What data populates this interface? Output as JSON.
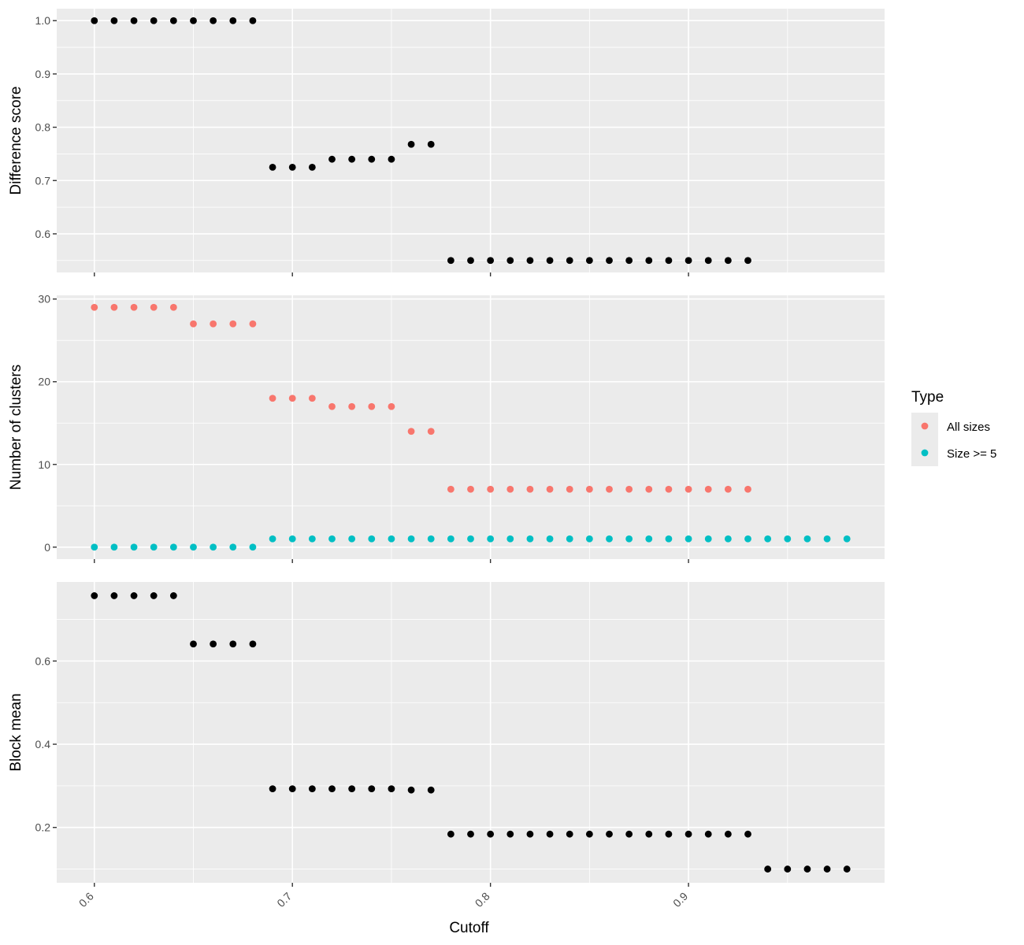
{
  "chart_data": [
    {
      "type": "scatter",
      "ylabel": "Difference score",
      "xlabel": "",
      "xlim": [
        0.581,
        0.999
      ],
      "ylim": [
        0.5275,
        1.0225
      ],
      "y_ticks": [
        0.6,
        0.7,
        0.8,
        0.9,
        1.0
      ],
      "y_tick_labels": [
        "0.6",
        "0.7",
        "0.8",
        "0.9",
        "1.0"
      ],
      "show_x_tick_labels": false,
      "series": [
        {
          "color": "#000000",
          "points": [
            {
              "x": 0.6,
              "y": 1.0
            },
            {
              "x": 0.61,
              "y": 1.0
            },
            {
              "x": 0.62,
              "y": 1.0
            },
            {
              "x": 0.63,
              "y": 1.0
            },
            {
              "x": 0.64,
              "y": 1.0
            },
            {
              "x": 0.65,
              "y": 1.0
            },
            {
              "x": 0.66,
              "y": 1.0
            },
            {
              "x": 0.67,
              "y": 1.0
            },
            {
              "x": 0.68,
              "y": 1.0
            },
            {
              "x": 0.69,
              "y": 0.725
            },
            {
              "x": 0.7,
              "y": 0.725
            },
            {
              "x": 0.71,
              "y": 0.725
            },
            {
              "x": 0.72,
              "y": 0.74
            },
            {
              "x": 0.73,
              "y": 0.74
            },
            {
              "x": 0.74,
              "y": 0.74
            },
            {
              "x": 0.75,
              "y": 0.74
            },
            {
              "x": 0.76,
              "y": 0.768
            },
            {
              "x": 0.77,
              "y": 0.768
            },
            {
              "x": 0.78,
              "y": 0.55
            },
            {
              "x": 0.79,
              "y": 0.55
            },
            {
              "x": 0.8,
              "y": 0.55
            },
            {
              "x": 0.81,
              "y": 0.55
            },
            {
              "x": 0.82,
              "y": 0.55
            },
            {
              "x": 0.83,
              "y": 0.55
            },
            {
              "x": 0.84,
              "y": 0.55
            },
            {
              "x": 0.85,
              "y": 0.55
            },
            {
              "x": 0.86,
              "y": 0.55
            },
            {
              "x": 0.87,
              "y": 0.55
            },
            {
              "x": 0.88,
              "y": 0.55
            },
            {
              "x": 0.89,
              "y": 0.55
            },
            {
              "x": 0.9,
              "y": 0.55
            },
            {
              "x": 0.91,
              "y": 0.55
            },
            {
              "x": 0.92,
              "y": 0.55
            },
            {
              "x": 0.93,
              "y": 0.55
            }
          ]
        }
      ],
      "grid": true
    },
    {
      "type": "scatter",
      "ylabel": "Number of clusters",
      "xlabel": "",
      "xlim": [
        0.581,
        0.999
      ],
      "ylim": [
        -1.45,
        30.45
      ],
      "y_ticks": [
        0,
        10,
        20,
        30
      ],
      "y_tick_labels": [
        "0",
        "10",
        "20",
        "30"
      ],
      "show_x_tick_labels": false,
      "legend_position": "right",
      "series": [
        {
          "name": "All sizes",
          "color": "#F8766D",
          "points": [
            {
              "x": 0.6,
              "y": 29
            },
            {
              "x": 0.61,
              "y": 29
            },
            {
              "x": 0.62,
              "y": 29
            },
            {
              "x": 0.63,
              "y": 29
            },
            {
              "x": 0.64,
              "y": 29
            },
            {
              "x": 0.65,
              "y": 27
            },
            {
              "x": 0.66,
              "y": 27
            },
            {
              "x": 0.67,
              "y": 27
            },
            {
              "x": 0.68,
              "y": 27
            },
            {
              "x": 0.69,
              "y": 18
            },
            {
              "x": 0.7,
              "y": 18
            },
            {
              "x": 0.71,
              "y": 18
            },
            {
              "x": 0.72,
              "y": 17
            },
            {
              "x": 0.73,
              "y": 17
            },
            {
              "x": 0.74,
              "y": 17
            },
            {
              "x": 0.75,
              "y": 17
            },
            {
              "x": 0.76,
              "y": 14
            },
            {
              "x": 0.77,
              "y": 14
            },
            {
              "x": 0.78,
              "y": 7
            },
            {
              "x": 0.79,
              "y": 7
            },
            {
              "x": 0.8,
              "y": 7
            },
            {
              "x": 0.81,
              "y": 7
            },
            {
              "x": 0.82,
              "y": 7
            },
            {
              "x": 0.83,
              "y": 7
            },
            {
              "x": 0.84,
              "y": 7
            },
            {
              "x": 0.85,
              "y": 7
            },
            {
              "x": 0.86,
              "y": 7
            },
            {
              "x": 0.87,
              "y": 7
            },
            {
              "x": 0.88,
              "y": 7
            },
            {
              "x": 0.89,
              "y": 7
            },
            {
              "x": 0.9,
              "y": 7
            },
            {
              "x": 0.91,
              "y": 7
            },
            {
              "x": 0.92,
              "y": 7
            },
            {
              "x": 0.93,
              "y": 7
            }
          ]
        },
        {
          "name": "Size >= 5",
          "color": "#00BFC4",
          "points": [
            {
              "x": 0.6,
              "y": 0
            },
            {
              "x": 0.61,
              "y": 0
            },
            {
              "x": 0.62,
              "y": 0
            },
            {
              "x": 0.63,
              "y": 0
            },
            {
              "x": 0.64,
              "y": 0
            },
            {
              "x": 0.65,
              "y": 0
            },
            {
              "x": 0.66,
              "y": 0
            },
            {
              "x": 0.67,
              "y": 0
            },
            {
              "x": 0.68,
              "y": 0
            },
            {
              "x": 0.69,
              "y": 1
            },
            {
              "x": 0.7,
              "y": 1
            },
            {
              "x": 0.71,
              "y": 1
            },
            {
              "x": 0.72,
              "y": 1
            },
            {
              "x": 0.73,
              "y": 1
            },
            {
              "x": 0.74,
              "y": 1
            },
            {
              "x": 0.75,
              "y": 1
            },
            {
              "x": 0.76,
              "y": 1
            },
            {
              "x": 0.77,
              "y": 1
            },
            {
              "x": 0.78,
              "y": 1
            },
            {
              "x": 0.79,
              "y": 1
            },
            {
              "x": 0.8,
              "y": 1
            },
            {
              "x": 0.81,
              "y": 1
            },
            {
              "x": 0.82,
              "y": 1
            },
            {
              "x": 0.83,
              "y": 1
            },
            {
              "x": 0.84,
              "y": 1
            },
            {
              "x": 0.85,
              "y": 1
            },
            {
              "x": 0.86,
              "y": 1
            },
            {
              "x": 0.87,
              "y": 1
            },
            {
              "x": 0.88,
              "y": 1
            },
            {
              "x": 0.89,
              "y": 1
            },
            {
              "x": 0.9,
              "y": 1
            },
            {
              "x": 0.91,
              "y": 1
            },
            {
              "x": 0.92,
              "y": 1
            },
            {
              "x": 0.93,
              "y": 1
            },
            {
              "x": 0.94,
              "y": 1
            },
            {
              "x": 0.95,
              "y": 1
            },
            {
              "x": 0.96,
              "y": 1
            },
            {
              "x": 0.97,
              "y": 1
            },
            {
              "x": 0.98,
              "y": 1
            }
          ]
        }
      ],
      "legend": {
        "title": "Type",
        "entries": [
          {
            "label": "All sizes",
            "color": "#F8766D"
          },
          {
            "label": "Size >= 5",
            "color": "#00BFC4"
          }
        ]
      },
      "grid": true
    },
    {
      "type": "scatter",
      "ylabel": "Block mean",
      "xlabel": "Cutoff",
      "xlim": [
        0.581,
        0.999
      ],
      "ylim": [
        0.067,
        0.79
      ],
      "y_ticks": [
        0.2,
        0.4,
        0.6
      ],
      "y_tick_labels": [
        "0.2",
        "0.4",
        "0.6"
      ],
      "x_ticks": [
        0.6,
        0.7,
        0.8,
        0.9
      ],
      "x_tick_labels": [
        "0.6",
        "0.7",
        "0.8",
        "0.9"
      ],
      "show_x_tick_labels": true,
      "series": [
        {
          "color": "#000000",
          "points": [
            {
              "x": 0.6,
              "y": 0.757
            },
            {
              "x": 0.61,
              "y": 0.757
            },
            {
              "x": 0.62,
              "y": 0.757
            },
            {
              "x": 0.63,
              "y": 0.757
            },
            {
              "x": 0.64,
              "y": 0.757
            },
            {
              "x": 0.65,
              "y": 0.641
            },
            {
              "x": 0.66,
              "y": 0.641
            },
            {
              "x": 0.67,
              "y": 0.641
            },
            {
              "x": 0.68,
              "y": 0.641
            },
            {
              "x": 0.69,
              "y": 0.293
            },
            {
              "x": 0.7,
              "y": 0.293
            },
            {
              "x": 0.71,
              "y": 0.293
            },
            {
              "x": 0.72,
              "y": 0.293
            },
            {
              "x": 0.73,
              "y": 0.293
            },
            {
              "x": 0.74,
              "y": 0.293
            },
            {
              "x": 0.75,
              "y": 0.293
            },
            {
              "x": 0.76,
              "y": 0.29
            },
            {
              "x": 0.77,
              "y": 0.29
            },
            {
              "x": 0.78,
              "y": 0.184
            },
            {
              "x": 0.79,
              "y": 0.184
            },
            {
              "x": 0.8,
              "y": 0.184
            },
            {
              "x": 0.81,
              "y": 0.184
            },
            {
              "x": 0.82,
              "y": 0.184
            },
            {
              "x": 0.83,
              "y": 0.184
            },
            {
              "x": 0.84,
              "y": 0.184
            },
            {
              "x": 0.85,
              "y": 0.184
            },
            {
              "x": 0.86,
              "y": 0.184
            },
            {
              "x": 0.87,
              "y": 0.184
            },
            {
              "x": 0.88,
              "y": 0.184
            },
            {
              "x": 0.89,
              "y": 0.184
            },
            {
              "x": 0.9,
              "y": 0.184
            },
            {
              "x": 0.91,
              "y": 0.184
            },
            {
              "x": 0.92,
              "y": 0.184
            },
            {
              "x": 0.93,
              "y": 0.184
            },
            {
              "x": 0.94,
              "y": 0.1
            },
            {
              "x": 0.95,
              "y": 0.1
            },
            {
              "x": 0.96,
              "y": 0.1
            },
            {
              "x": 0.97,
              "y": 0.1
            },
            {
              "x": 0.98,
              "y": 0.1
            }
          ]
        }
      ],
      "grid": true
    }
  ]
}
